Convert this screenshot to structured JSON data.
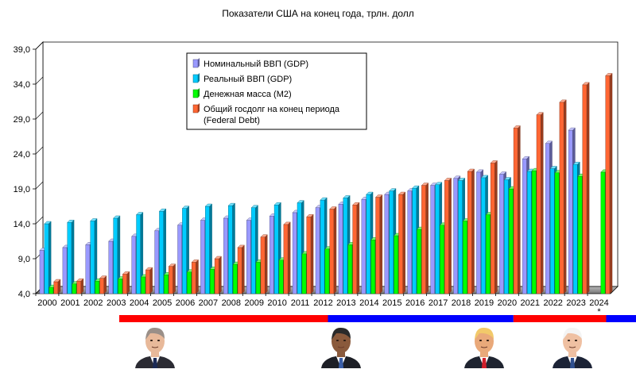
{
  "chart_data": {
    "type": "bar",
    "title": "Показатели США на конец года, трлн. долл",
    "xlabel": "",
    "ylabel": "",
    "ylim": [
      4.0,
      39.0
    ],
    "yticks": [
      "4,0",
      "9,0",
      "14,0",
      "19,0",
      "24,0",
      "29,0",
      "34,0",
      "39,0"
    ],
    "categories": [
      "2000",
      "2001",
      "2002",
      "2003",
      "2004",
      "2005",
      "2006",
      "2007",
      "2008",
      "2009",
      "2010",
      "2011",
      "2012",
      "2013",
      "2014",
      "2015",
      "2016",
      "2017",
      "2018",
      "2019",
      "2020",
      "2021",
      "2022",
      "2023",
      "2024"
    ],
    "footnote_mark": "*",
    "legend_position": "top-center",
    "grid": false,
    "series": [
      {
        "name": "Номинальный ВВП (GDP)",
        "color": "#9999ff",
        "values": [
          10.2,
          10.6,
          11.0,
          11.5,
          12.2,
          13.0,
          13.8,
          14.5,
          14.8,
          14.5,
          15.1,
          15.6,
          16.3,
          16.8,
          17.5,
          18.2,
          18.7,
          19.5,
          20.5,
          21.4,
          21.1,
          23.3,
          25.5,
          27.4,
          null
        ]
      },
      {
        "name": "Реальный ВВП (GDP)",
        "color": "#00ccff",
        "values": [
          14.0,
          14.2,
          14.4,
          14.8,
          15.3,
          15.8,
          16.2,
          16.5,
          16.6,
          16.3,
          16.7,
          17.0,
          17.4,
          17.7,
          18.2,
          18.7,
          19.1,
          19.6,
          20.2,
          20.6,
          20.3,
          21.5,
          21.9,
          22.5,
          null
        ]
      },
      {
        "name": "Денежная масса (M2)",
        "color": "#00ff00",
        "values": [
          4.9,
          5.4,
          5.8,
          6.1,
          6.4,
          6.7,
          7.1,
          7.5,
          8.2,
          8.5,
          8.8,
          9.7,
          10.4,
          11.0,
          11.7,
          12.3,
          13.2,
          13.8,
          14.4,
          15.3,
          19.0,
          21.6,
          21.3,
          20.8,
          21.4
        ]
      },
      {
        "name": "Общий госдолг на конец периода (Federal Debt)",
        "name_lines": [
          "Общий госдолг на конец периода",
          "(Federal Debt)"
        ],
        "color": "#ff6633",
        "values": [
          5.7,
          5.8,
          6.2,
          6.8,
          7.4,
          7.9,
          8.5,
          9.0,
          10.6,
          12.1,
          13.9,
          15.0,
          16.1,
          16.7,
          17.8,
          18.2,
          19.5,
          20.2,
          21.5,
          22.7,
          27.7,
          29.6,
          31.4,
          33.9,
          35.2
        ]
      }
    ]
  },
  "presidents_bar": [
    {
      "from": "2000",
      "to": "2008",
      "color": "#ff0000"
    },
    {
      "from": "2009",
      "to": "2016",
      "color": "#0000ff"
    },
    {
      "from": "2017",
      "to": "2020",
      "color": "#ff0000"
    },
    {
      "from": "2021",
      "to": "2024",
      "color": "#0000ff"
    }
  ],
  "portraits": [
    {
      "name": "portrait-1",
      "suit": "#2b2b33",
      "skin": "#e8b99a",
      "hair": "#9a8f88",
      "tie": "#1b2a55",
      "bg": "#ffffff"
    },
    {
      "name": "portrait-2",
      "suit": "#1d1f26",
      "skin": "#8a5a3c",
      "hair": "#2a2a2a",
      "tie": "#3a5ea8",
      "bg": "#ffffff"
    },
    {
      "name": "portrait-3",
      "suit": "#1f2430",
      "skin": "#e9a97a",
      "hair": "#f2c96a",
      "tie": "#d01e2a",
      "bg": "#ffffff"
    },
    {
      "name": "portrait-4",
      "suit": "#1c2336",
      "skin": "#efc0a2",
      "hair": "#f4f4f4",
      "tie": "#2f4f8f",
      "bg": "#ffffff"
    }
  ]
}
